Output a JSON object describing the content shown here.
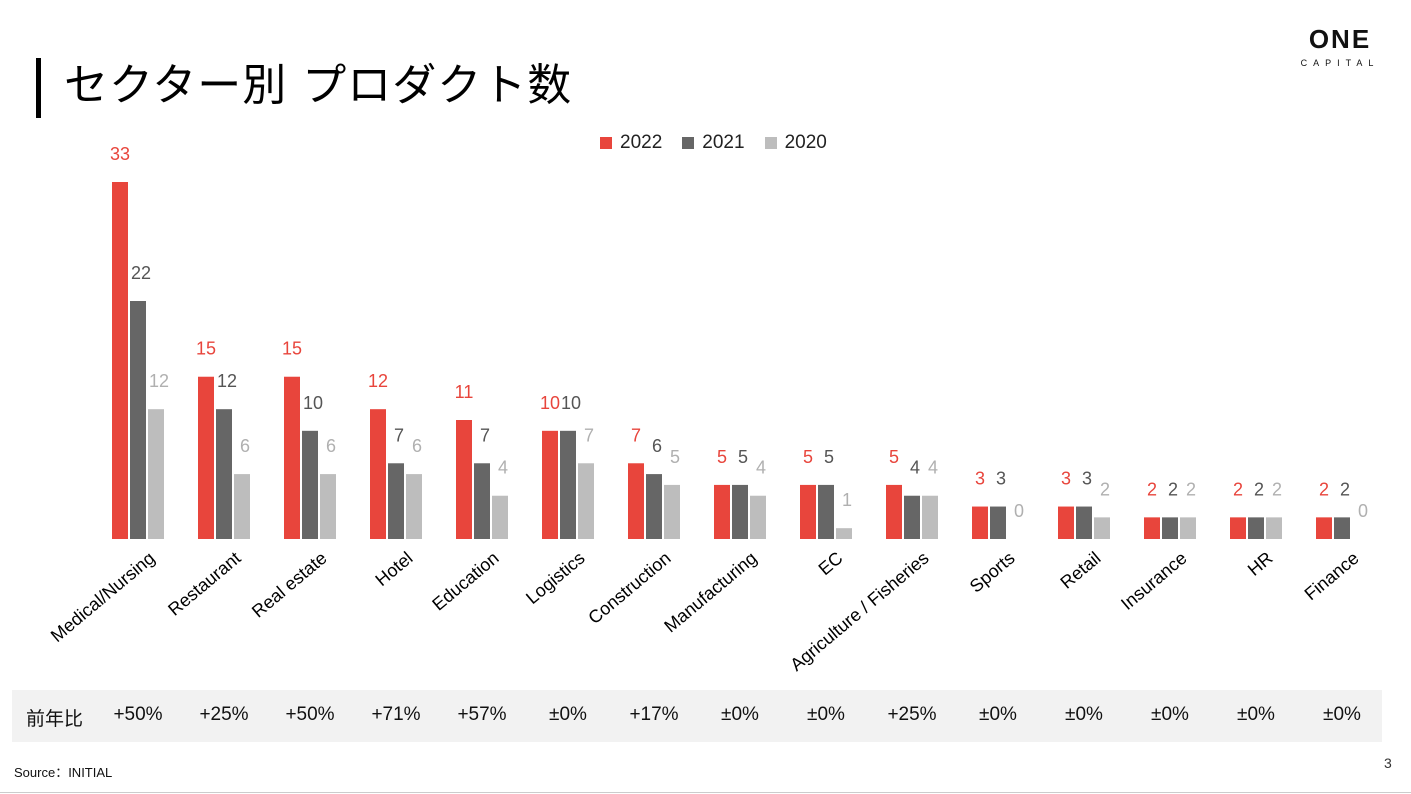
{
  "slide": {
    "title": "セクター別 プロダクト数",
    "logo_main": "ONE",
    "logo_sub": "CAPITAL",
    "source": "Source：INITIAL",
    "page_number": "3"
  },
  "yoy": {
    "label": "前年比",
    "values": [
      "+50%",
      "+25%",
      "+50%",
      "+71%",
      "+57%",
      "±0%",
      "+17%",
      "±0%",
      "±0%",
      "+25%",
      "±0%",
      "±0%",
      "±0%",
      "±0%",
      "±0%"
    ]
  },
  "colors": {
    "y2022": "#e8453c",
    "y2021": "#666666",
    "y2020": "#bdbdbd"
  },
  "chart_data": {
    "type": "bar",
    "title": "セクター別 プロダクト数",
    "xlabel": "",
    "ylabel": "",
    "ylim": [
      0,
      33
    ],
    "legend": "top-center",
    "categories": [
      "Medical/Nursing",
      "Restaurant",
      "Real estate",
      "Hotel",
      "Education",
      "Logistics",
      "Construction",
      "Manufacturing",
      "EC",
      "Agriculture / Fisheries",
      "Sports",
      "Retail",
      "Insurance",
      "HR",
      "Finance"
    ],
    "series": [
      {
        "name": "2022",
        "values": [
          33,
          15,
          15,
          12,
          11,
          10,
          7,
          5,
          5,
          5,
          3,
          3,
          2,
          2,
          2
        ]
      },
      {
        "name": "2021",
        "values": [
          22,
          12,
          10,
          7,
          7,
          10,
          6,
          5,
          5,
          4,
          3,
          3,
          2,
          2,
          2
        ]
      },
      {
        "name": "2020",
        "values": [
          12,
          6,
          6,
          6,
          4,
          7,
          5,
          4,
          1,
          4,
          0,
          2,
          2,
          2,
          0
        ]
      }
    ]
  }
}
